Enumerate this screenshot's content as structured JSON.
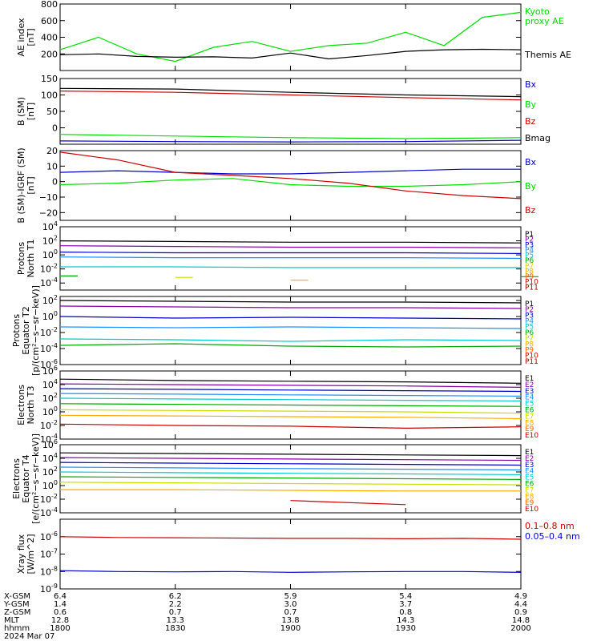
{
  "chart_data": [
    {
      "type": "line",
      "panel_id": "ae",
      "ylabel": "AE index\n[nT]",
      "ylim": [
        0,
        800
      ],
      "y_ticks": [
        0,
        200,
        400,
        600,
        800
      ],
      "y_tick_labels": [
        "",
        "200",
        "400",
        "600",
        "800"
      ],
      "x": [
        1800,
        1810,
        1820,
        1830,
        1840,
        1850,
        1900,
        1910,
        1920,
        1930,
        1940,
        1950,
        2000
      ],
      "series": [
        {
          "name": "Kyoto proxy AE",
          "label_lines": [
            "Kyoto",
            "proxy AE"
          ],
          "color": "#00dd00",
          "values": [
            250,
            400,
            200,
            110,
            280,
            350,
            230,
            300,
            330,
            460,
            300,
            640,
            700
          ]
        },
        {
          "name": "Themis AE",
          "label_lines": [
            "Themis AE"
          ],
          "color": "#000000",
          "values": [
            190,
            200,
            170,
            160,
            165,
            150,
            210,
            140,
            180,
            230,
            250,
            255,
            250
          ]
        }
      ]
    },
    {
      "type": "line",
      "panel_id": "bsm",
      "ylabel": "B (SM)\n[nT]",
      "ylim": [
        -50,
        150
      ],
      "y_ticks": [
        -50,
        0,
        50,
        100,
        150
      ],
      "y_tick_labels": [
        "",
        "0",
        "50",
        "100",
        "150"
      ],
      "x": [
        1800,
        1830,
        1900,
        1930,
        2000
      ],
      "series": [
        {
          "name": "Bx",
          "label_lines": [
            "Bx"
          ],
          "color": "#0000cc",
          "values": [
            -40,
            -42,
            -43,
            -42,
            -38
          ]
        },
        {
          "name": "By",
          "label_lines": [
            "By"
          ],
          "color": "#00dd00",
          "values": [
            -20,
            -25,
            -30,
            -33,
            -30
          ]
        },
        {
          "name": "Bz",
          "label_lines": [
            "Bz"
          ],
          "color": "#cc0000",
          "values": [
            112,
            108,
            100,
            92,
            85
          ]
        },
        {
          "name": "Bmag",
          "label_lines": [
            "Bmag"
          ],
          "color": "#000000",
          "values": [
            120,
            118,
            108,
            100,
            95
          ]
        }
      ]
    },
    {
      "type": "line",
      "panel_id": "bigrf",
      "ylabel": "B (SM)-IGRF (SM)\n[nT]",
      "ylim": [
        -25,
        20
      ],
      "y_ticks": [
        -20,
        -10,
        0,
        10,
        20
      ],
      "y_tick_labels": [
        "−20",
        "−10",
        "0",
        "10",
        "20"
      ],
      "x": [
        1800,
        1815,
        1830,
        1845,
        1900,
        1915,
        1930,
        1945,
        2000
      ],
      "series": [
        {
          "name": "Bx",
          "label_lines": [
            "Bx"
          ],
          "color": "#0000cc",
          "values": [
            6,
            7,
            6,
            5,
            5,
            6,
            7,
            8,
            8
          ]
        },
        {
          "name": "By",
          "label_lines": [
            "By"
          ],
          "color": "#00dd00",
          "values": [
            -2,
            -1,
            1,
            2,
            -2,
            -3,
            -3,
            -2,
            0
          ]
        },
        {
          "name": "Bz",
          "label_lines": [
            "Bz"
          ],
          "color": "#cc0000",
          "values": [
            19,
            14,
            6,
            4,
            2,
            -1,
            -6,
            -9,
            -11
          ]
        }
      ]
    },
    {
      "type": "line",
      "panel_id": "pn1",
      "log": true,
      "ylabel": "Protons\nNorth T1",
      "ylim": [
        -5,
        4
      ],
      "y_ticks": [
        -4,
        -2,
        0,
        2,
        4
      ],
      "y_tick_labels": [
        "10^-4",
        "10^-2",
        "10^0",
        "10^2",
        "10^4"
      ],
      "x": [
        1800,
        1830,
        1900,
        1930,
        2000
      ],
      "series": [
        {
          "name": "P1",
          "label_lines": [
            "P1"
          ],
          "color": "#000000",
          "values": [
            2.0,
            1.9,
            1.8,
            1.8,
            1.7
          ]
        },
        {
          "name": "P2",
          "label_lines": [
            "P2"
          ],
          "color": "#8800aa",
          "values": [
            1.3,
            1.2,
            1.1,
            1.1,
            1.0
          ]
        },
        {
          "name": "P3",
          "label_lines": [
            "P3"
          ],
          "color": "#0000cc",
          "values": [
            0.4,
            0.3,
            0.3,
            0.3,
            0.2
          ]
        },
        {
          "name": "P4",
          "label_lines": [
            "P4"
          ],
          "color": "#1e90ff",
          "values": [
            -0.3,
            -0.4,
            -0.4,
            -0.4,
            -0.5
          ]
        },
        {
          "name": "P5",
          "label_lines": [
            "P5"
          ],
          "color": "#00cccc",
          "values": [
            -1.7,
            -1.7,
            -1.8,
            -1.8,
            -1.8
          ]
        },
        {
          "name": "P6",
          "label_lines": [
            "P6"
          ],
          "color": "#00aa00",
          "values": [
            -3.0,
            null,
            null,
            null,
            -3.1
          ]
        },
        {
          "name": "P7",
          "label_lines": [
            "P7"
          ],
          "color": "#ccdd00",
          "values": [
            null,
            -3.2,
            null,
            null,
            null
          ]
        },
        {
          "name": "P8",
          "label_lines": [
            "P8"
          ],
          "color": "#ffaa00",
          "values": [
            null,
            null,
            -3.6,
            null,
            null
          ]
        },
        {
          "name": "P9",
          "label_lines": [
            "P9"
          ],
          "color": "#ff6600",
          "values": [
            null,
            null,
            null,
            null,
            null
          ]
        },
        {
          "name": "P10",
          "label_lines": [
            "P10"
          ],
          "color": "#dd0000",
          "values": [
            null,
            null,
            null,
            null,
            null
          ]
        },
        {
          "name": "P11",
          "label_lines": [
            "P11"
          ],
          "color": "#aa0000",
          "values": [
            null,
            null,
            null,
            null,
            null
          ]
        }
      ]
    },
    {
      "type": "line",
      "panel_id": "pe2",
      "log": true,
      "ylabel": "Protons\nEquator T2\n[p/(cm²−s−sr−keV)]",
      "ylim": [
        -6,
        2.5
      ],
      "y_ticks": [
        -6,
        -4,
        -2,
        0,
        2
      ],
      "y_tick_labels": [
        "10^-6",
        "10^-4",
        "10^-2",
        "10^0",
        "10^2"
      ],
      "x": [
        1800,
        1830,
        1900,
        1930,
        2000
      ],
      "series": [
        {
          "name": "P1",
          "label_lines": [
            "P1"
          ],
          "color": "#000000",
          "values": [
            2.0,
            1.9,
            1.8,
            1.8,
            1.7
          ]
        },
        {
          "name": "P2",
          "label_lines": [
            "P2"
          ],
          "color": "#8800aa",
          "values": [
            1.3,
            1.2,
            1.1,
            1.1,
            1.0
          ]
        },
        {
          "name": "P3",
          "label_lines": [
            "P3"
          ],
          "color": "#0000cc",
          "values": [
            0.0,
            -0.2,
            -0.1,
            -0.2,
            -0.3
          ]
        },
        {
          "name": "P4",
          "label_lines": [
            "P4"
          ],
          "color": "#1e90ff",
          "values": [
            -1.3,
            -1.4,
            -1.3,
            -1.4,
            -1.5
          ]
        },
        {
          "name": "P5",
          "label_lines": [
            "P5"
          ],
          "color": "#00cccc",
          "values": [
            -2.8,
            -2.9,
            -3.1,
            -2.9,
            -3.0
          ]
        },
        {
          "name": "P6",
          "label_lines": [
            "P6"
          ],
          "color": "#00aa00",
          "values": [
            -3.6,
            -3.4,
            -3.7,
            -3.8,
            -3.7
          ]
        },
        {
          "name": "P7",
          "label_lines": [
            "P7"
          ],
          "color": "#ccdd00",
          "values": [
            null,
            null,
            null,
            null,
            null
          ]
        },
        {
          "name": "P8",
          "label_lines": [
            "P8"
          ],
          "color": "#ffaa00",
          "values": [
            null,
            null,
            null,
            null,
            null
          ]
        },
        {
          "name": "P9",
          "label_lines": [
            "P9"
          ],
          "color": "#ff6600",
          "values": [
            null,
            null,
            null,
            null,
            null
          ]
        },
        {
          "name": "P10",
          "label_lines": [
            "P10"
          ],
          "color": "#dd0000",
          "values": [
            null,
            null,
            null,
            null,
            null
          ]
        },
        {
          "name": "P11",
          "label_lines": [
            "P11"
          ],
          "color": "#aa0000",
          "values": [
            null,
            null,
            null,
            null,
            null
          ]
        }
      ]
    },
    {
      "type": "line",
      "panel_id": "en3",
      "log": true,
      "ylabel": "Electrons\nNorth T3",
      "ylim": [
        -4,
        6
      ],
      "y_ticks": [
        -4,
        -2,
        0,
        2,
        4,
        6
      ],
      "y_tick_labels": [
        "10^-4",
        "10^-2",
        "10^0",
        "10^2",
        "10^4",
        "10^6"
      ],
      "x": [
        1800,
        1830,
        1900,
        1930,
        2000
      ],
      "series": [
        {
          "name": "E1",
          "label_lines": [
            "E1"
          ],
          "color": "#000000",
          "values": [
            4.8,
            4.6,
            4.5,
            4.4,
            4.2
          ]
        },
        {
          "name": "E2",
          "label_lines": [
            "E2"
          ],
          "color": "#8800aa",
          "values": [
            4.1,
            4.0,
            3.9,
            3.8,
            3.6
          ]
        },
        {
          "name": "E3",
          "label_lines": [
            "E3"
          ],
          "color": "#0000cc",
          "values": [
            3.4,
            3.3,
            3.2,
            3.1,
            3.0
          ]
        },
        {
          "name": "E4",
          "label_lines": [
            "E4"
          ],
          "color": "#1e90ff",
          "values": [
            2.7,
            2.6,
            2.5,
            2.4,
            2.3
          ]
        },
        {
          "name": "E5",
          "label_lines": [
            "E5"
          ],
          "color": "#00cccc",
          "values": [
            2.0,
            1.9,
            1.8,
            1.7,
            1.6
          ]
        },
        {
          "name": "E6",
          "label_lines": [
            "E6"
          ],
          "color": "#00aa00",
          "values": [
            1.2,
            1.1,
            1.0,
            0.9,
            0.8
          ]
        },
        {
          "name": "E7",
          "label_lines": [
            "E7"
          ],
          "color": "#ccdd00",
          "values": [
            0.3,
            0.2,
            0.1,
            0.0,
            -0.2
          ]
        },
        {
          "name": "E8",
          "label_lines": [
            "E8"
          ],
          "color": "#ffaa00",
          "values": [
            -0.5,
            -0.6,
            -0.7,
            -0.8,
            -1.0
          ]
        },
        {
          "name": "E9",
          "label_lines": [
            "E9"
          ],
          "color": "#ff6600",
          "values": [
            null,
            null,
            null,
            null,
            null
          ]
        },
        {
          "name": "E10",
          "label_lines": [
            "E10"
          ],
          "color": "#cc0000",
          "values": [
            -1.8,
            -2.0,
            -2.1,
            -2.4,
            -2.2
          ]
        }
      ]
    },
    {
      "type": "line",
      "panel_id": "ee4",
      "log": true,
      "ylabel": "Electrons\nEquator T4\n[e/(cm²−s−sr−keV)]",
      "ylim": [
        -4,
        6
      ],
      "y_ticks": [
        -4,
        -2,
        0,
        2,
        4,
        6
      ],
      "y_tick_labels": [
        "10^-4",
        "10^-2",
        "10^0",
        "10^2",
        "10^4",
        "10^6"
      ],
      "x": [
        1800,
        1830,
        1900,
        1930,
        2000
      ],
      "series": [
        {
          "name": "E1",
          "label_lines": [
            "E1"
          ],
          "color": "#000000",
          "values": [
            4.8,
            4.7,
            4.6,
            4.5,
            4.4
          ]
        },
        {
          "name": "E2",
          "label_lines": [
            "E2"
          ],
          "color": "#8800aa",
          "values": [
            4.1,
            4.0,
            3.9,
            3.8,
            3.7
          ]
        },
        {
          "name": "E3",
          "label_lines": [
            "E3"
          ],
          "color": "#0000cc",
          "values": [
            3.4,
            3.3,
            3.2,
            3.1,
            3.0
          ]
        },
        {
          "name": "E4",
          "label_lines": [
            "E4"
          ],
          "color": "#1e90ff",
          "values": [
            2.7,
            2.6,
            2.5,
            2.4,
            2.3
          ]
        },
        {
          "name": "E5",
          "label_lines": [
            "E5"
          ],
          "color": "#00cccc",
          "values": [
            2.0,
            1.9,
            1.8,
            1.7,
            1.6
          ]
        },
        {
          "name": "E6",
          "label_lines": [
            "E6"
          ],
          "color": "#00aa00",
          "values": [
            1.3,
            1.2,
            1.1,
            1.0,
            0.9
          ]
        },
        {
          "name": "E7",
          "label_lines": [
            "E7"
          ],
          "color": "#ccdd00",
          "values": [
            0.5,
            0.4,
            0.3,
            0.2,
            0.1
          ]
        },
        {
          "name": "E8",
          "label_lines": [
            "E8"
          ],
          "color": "#ffaa00",
          "values": [
            -0.6,
            -0.6,
            -0.7,
            -0.8,
            -0.8
          ]
        },
        {
          "name": "E9",
          "label_lines": [
            "E9"
          ],
          "color": "#ff6600",
          "values": [
            null,
            null,
            null,
            null,
            null
          ]
        },
        {
          "name": "E10",
          "label_lines": [
            "E10"
          ],
          "color": "#cc0000",
          "values": [
            null,
            null,
            -2.2,
            -2.8,
            null
          ]
        }
      ]
    },
    {
      "type": "line",
      "panel_id": "xray",
      "log": true,
      "ylabel": "Xray flux\n[W/m^2]",
      "ylim": [
        -9,
        -5
      ],
      "y_ticks": [
        -9,
        -8,
        -7,
        -6
      ],
      "y_tick_labels": [
        "10^-9",
        "10^-8",
        "10^-7",
        "10^-6"
      ],
      "x": [
        1800,
        1815,
        1830,
        1845,
        1900,
        1915,
        1930,
        1945,
        2000
      ],
      "series": [
        {
          "name": "0.1–0.8 nm",
          "label_lines": [
            "0.1–0.8 nm"
          ],
          "color": "#cc0000",
          "values": [
            -6.0,
            -6.05,
            -6.06,
            -6.08,
            -6.1,
            -6.1,
            -6.12,
            -6.1,
            -6.15
          ]
        },
        {
          "name": "0.05–0.4 nm",
          "label_lines": [
            "0.05–0.4 nm"
          ],
          "color": "#0000cc",
          "values": [
            -7.95,
            -8.0,
            -8.02,
            -8.0,
            -8.05,
            -8.02,
            -8.0,
            -8.0,
            -8.05
          ]
        }
      ]
    }
  ],
  "xaxis": {
    "ticks": [
      1800,
      1830,
      1900,
      1930,
      2000
    ],
    "rows": [
      {
        "label": "X-GSM",
        "values": [
          "6.4",
          "6.2",
          "5.9",
          "5.4",
          "4.9"
        ]
      },
      {
        "label": "Y-GSM",
        "values": [
          "1.4",
          "2.2",
          "3.0",
          "3.7",
          "4.4"
        ]
      },
      {
        "label": "Z-GSM",
        "values": [
          "0.6",
          "0.7",
          "0.7",
          "0.8",
          "0.9"
        ]
      },
      {
        "label": "MLT",
        "values": [
          "12.8",
          "13.3",
          "13.8",
          "14.3",
          "14.8"
        ]
      },
      {
        "label": "hhmm",
        "values": [
          "1800",
          "1830",
          "1900",
          "1930",
          "2000"
        ]
      }
    ],
    "date": "2024 Mar 07"
  }
}
